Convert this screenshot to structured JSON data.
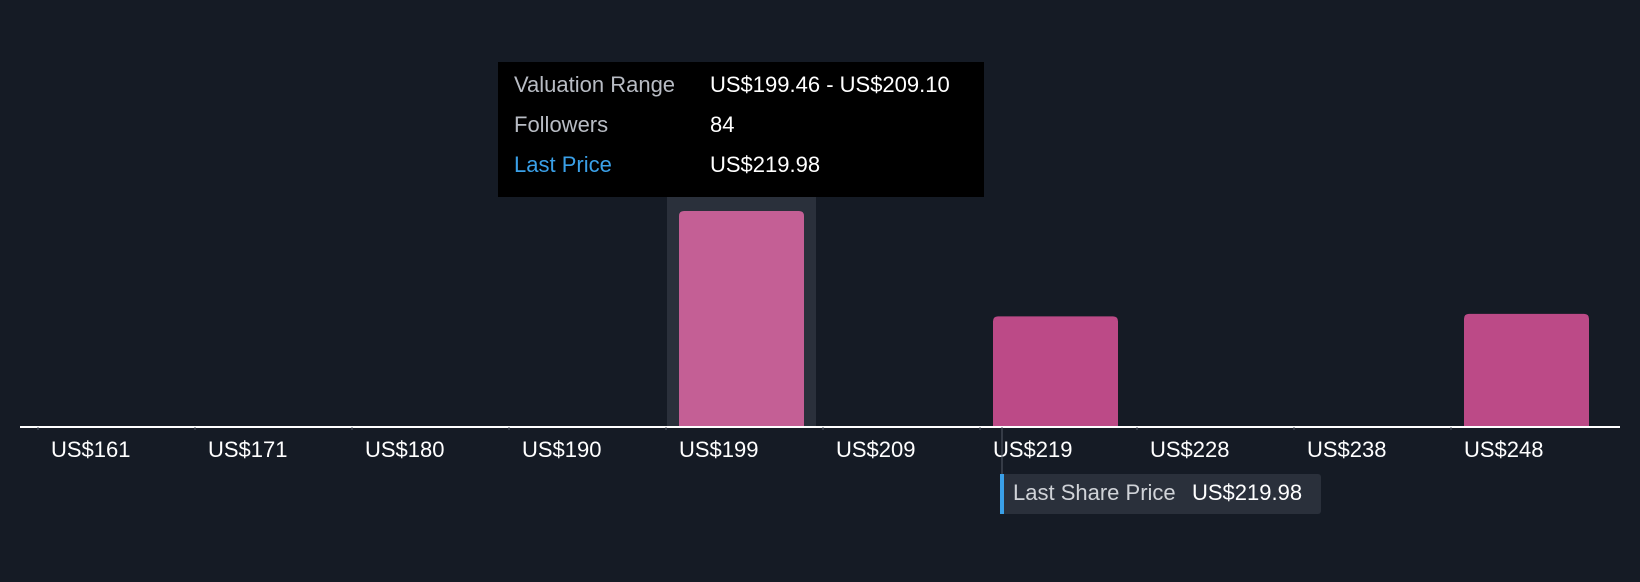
{
  "chart_data": {
    "type": "bar",
    "categories": [
      "US$161",
      "US$171",
      "US$180",
      "US$190",
      "US$199",
      "US$209",
      "US$219",
      "US$228",
      "US$238",
      "US$248"
    ],
    "values": [
      0,
      0,
      0,
      0,
      84,
      0,
      43,
      0,
      0,
      44
    ],
    "color": "#bc4a87",
    "tooltip": {
      "rows": [
        {
          "label": "Valuation Range",
          "value": "US$199.46 - US$209.10"
        },
        {
          "label": "Followers"
        },
        {
          "label": "Last Price",
          "value": "US$219.98"
        }
      ]
    },
    "annotation": {
      "label": "Last Share Price",
      "value": "US$219.98"
    }
  }
}
